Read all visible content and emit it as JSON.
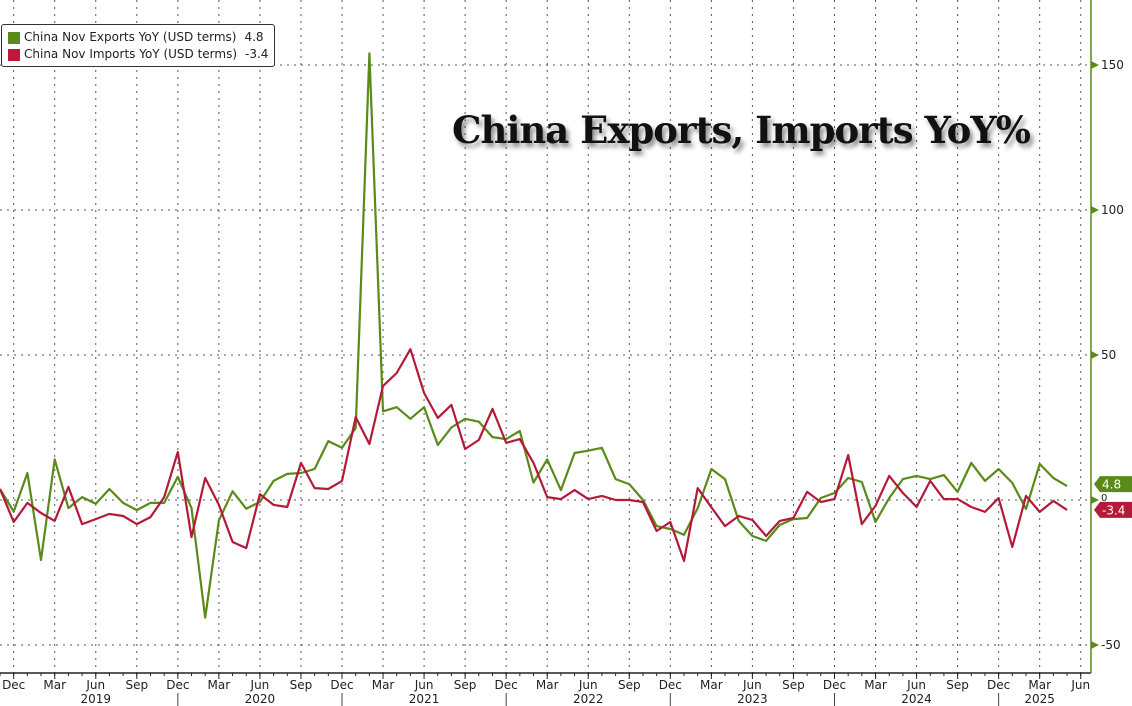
{
  "chart_data": {
    "type": "line",
    "title": "China Exports, Imports YoY%",
    "xlabel": "",
    "ylabel": "",
    "x_start": "2018-11",
    "x_frequency": "monthly",
    "ylim": [
      -58,
      172
    ],
    "yticks": [
      150,
      100,
      50,
      0,
      -50
    ],
    "grid": true,
    "legend_position": "top-left",
    "month_ticks": [
      "Dec",
      "Mar",
      "Jun",
      "Sep",
      "Dec",
      "Mar",
      "Jun",
      "Sep",
      "Dec",
      "Mar",
      "Jun",
      "Sep",
      "Dec",
      "Mar",
      "Jun",
      "Sep",
      "Dec",
      "Mar",
      "Jun",
      "Sep",
      "Dec",
      "Mar",
      "Jun",
      "Sep",
      "Dec",
      "Mar",
      "Jun"
    ],
    "year_labels": [
      {
        "label": "2019",
        "month_index": 7
      },
      {
        "label": "2020",
        "month_index": 19
      },
      {
        "label": "2021",
        "month_index": 31
      },
      {
        "label": "2022",
        "month_index": 43
      },
      {
        "label": "2023",
        "month_index": 55
      },
      {
        "label": "2024",
        "month_index": 67
      },
      {
        "label": "2025",
        "month_index": 76
      }
    ],
    "series": [
      {
        "name": "China Nov Exports YoY (USD terms)",
        "last_value": "4.8",
        "color": "#5a8a1a",
        "values": [
          3.8,
          -4,
          9.3,
          -20.7,
          14,
          -2.8,
          1,
          -1.3,
          3.8,
          -1,
          -3.5,
          -1,
          -1,
          8,
          -2.8,
          -40.6,
          -7,
          3,
          -3,
          -0.7,
          6.6,
          9,
          9.3,
          10.7,
          20.3,
          18,
          24.8,
          154,
          30.6,
          32,
          28,
          32,
          19,
          25,
          28,
          27,
          21.7,
          21,
          23.8,
          6,
          14,
          3.4,
          16.2,
          17,
          18,
          7.2,
          5.5,
          0,
          -9,
          -10,
          -12,
          -2.8,
          10.7,
          7.2,
          -7.2,
          -12.4,
          -14.1,
          -8.6,
          -6.6,
          -6.2,
          0.7,
          2.4,
          7.6,
          6.2,
          -7.6,
          0.7,
          7.2,
          8.3,
          7.2,
          8.6,
          2.8,
          12.8,
          6.6,
          10.7,
          5.9,
          -3.1,
          12.4,
          7.6,
          4.8
        ]
      },
      {
        "name": "China Nov Imports YoY (USD terms)",
        "last_value": "-3.4",
        "color": "#b5193a",
        "values": [
          3.8,
          -7.6,
          -1,
          -4.5,
          -7.2,
          4.5,
          -8.3,
          -6.6,
          -4.8,
          -5.5,
          -8.3,
          -5.9,
          1,
          16.5,
          -12.8,
          7.6,
          -1.7,
          -14.5,
          -16.6,
          2,
          -1.7,
          -2.4,
          12.8,
          4.1,
          3.8,
          6.6,
          28.6,
          19.3,
          39.3,
          43.8,
          52,
          36.9,
          28.3,
          32.8,
          17.6,
          20.7,
          31.4,
          19.7,
          21,
          12.8,
          1,
          0.3,
          3.4,
          0.3,
          1.4,
          0,
          0,
          -0.7,
          -10.7,
          -7.6,
          -21,
          4.1,
          -2.5,
          -9,
          -5.5,
          -6.9,
          -12.4,
          -7.2,
          -6.2,
          2.8,
          -0.7,
          0.3,
          15.5,
          -8.3,
          -2,
          8.3,
          2.4,
          -2.4,
          6.6,
          0.3,
          0.3,
          -2.4,
          -4.1,
          0.7,
          -16.2,
          1.4,
          -4.1,
          -0.3,
          -3.4
        ]
      }
    ]
  }
}
